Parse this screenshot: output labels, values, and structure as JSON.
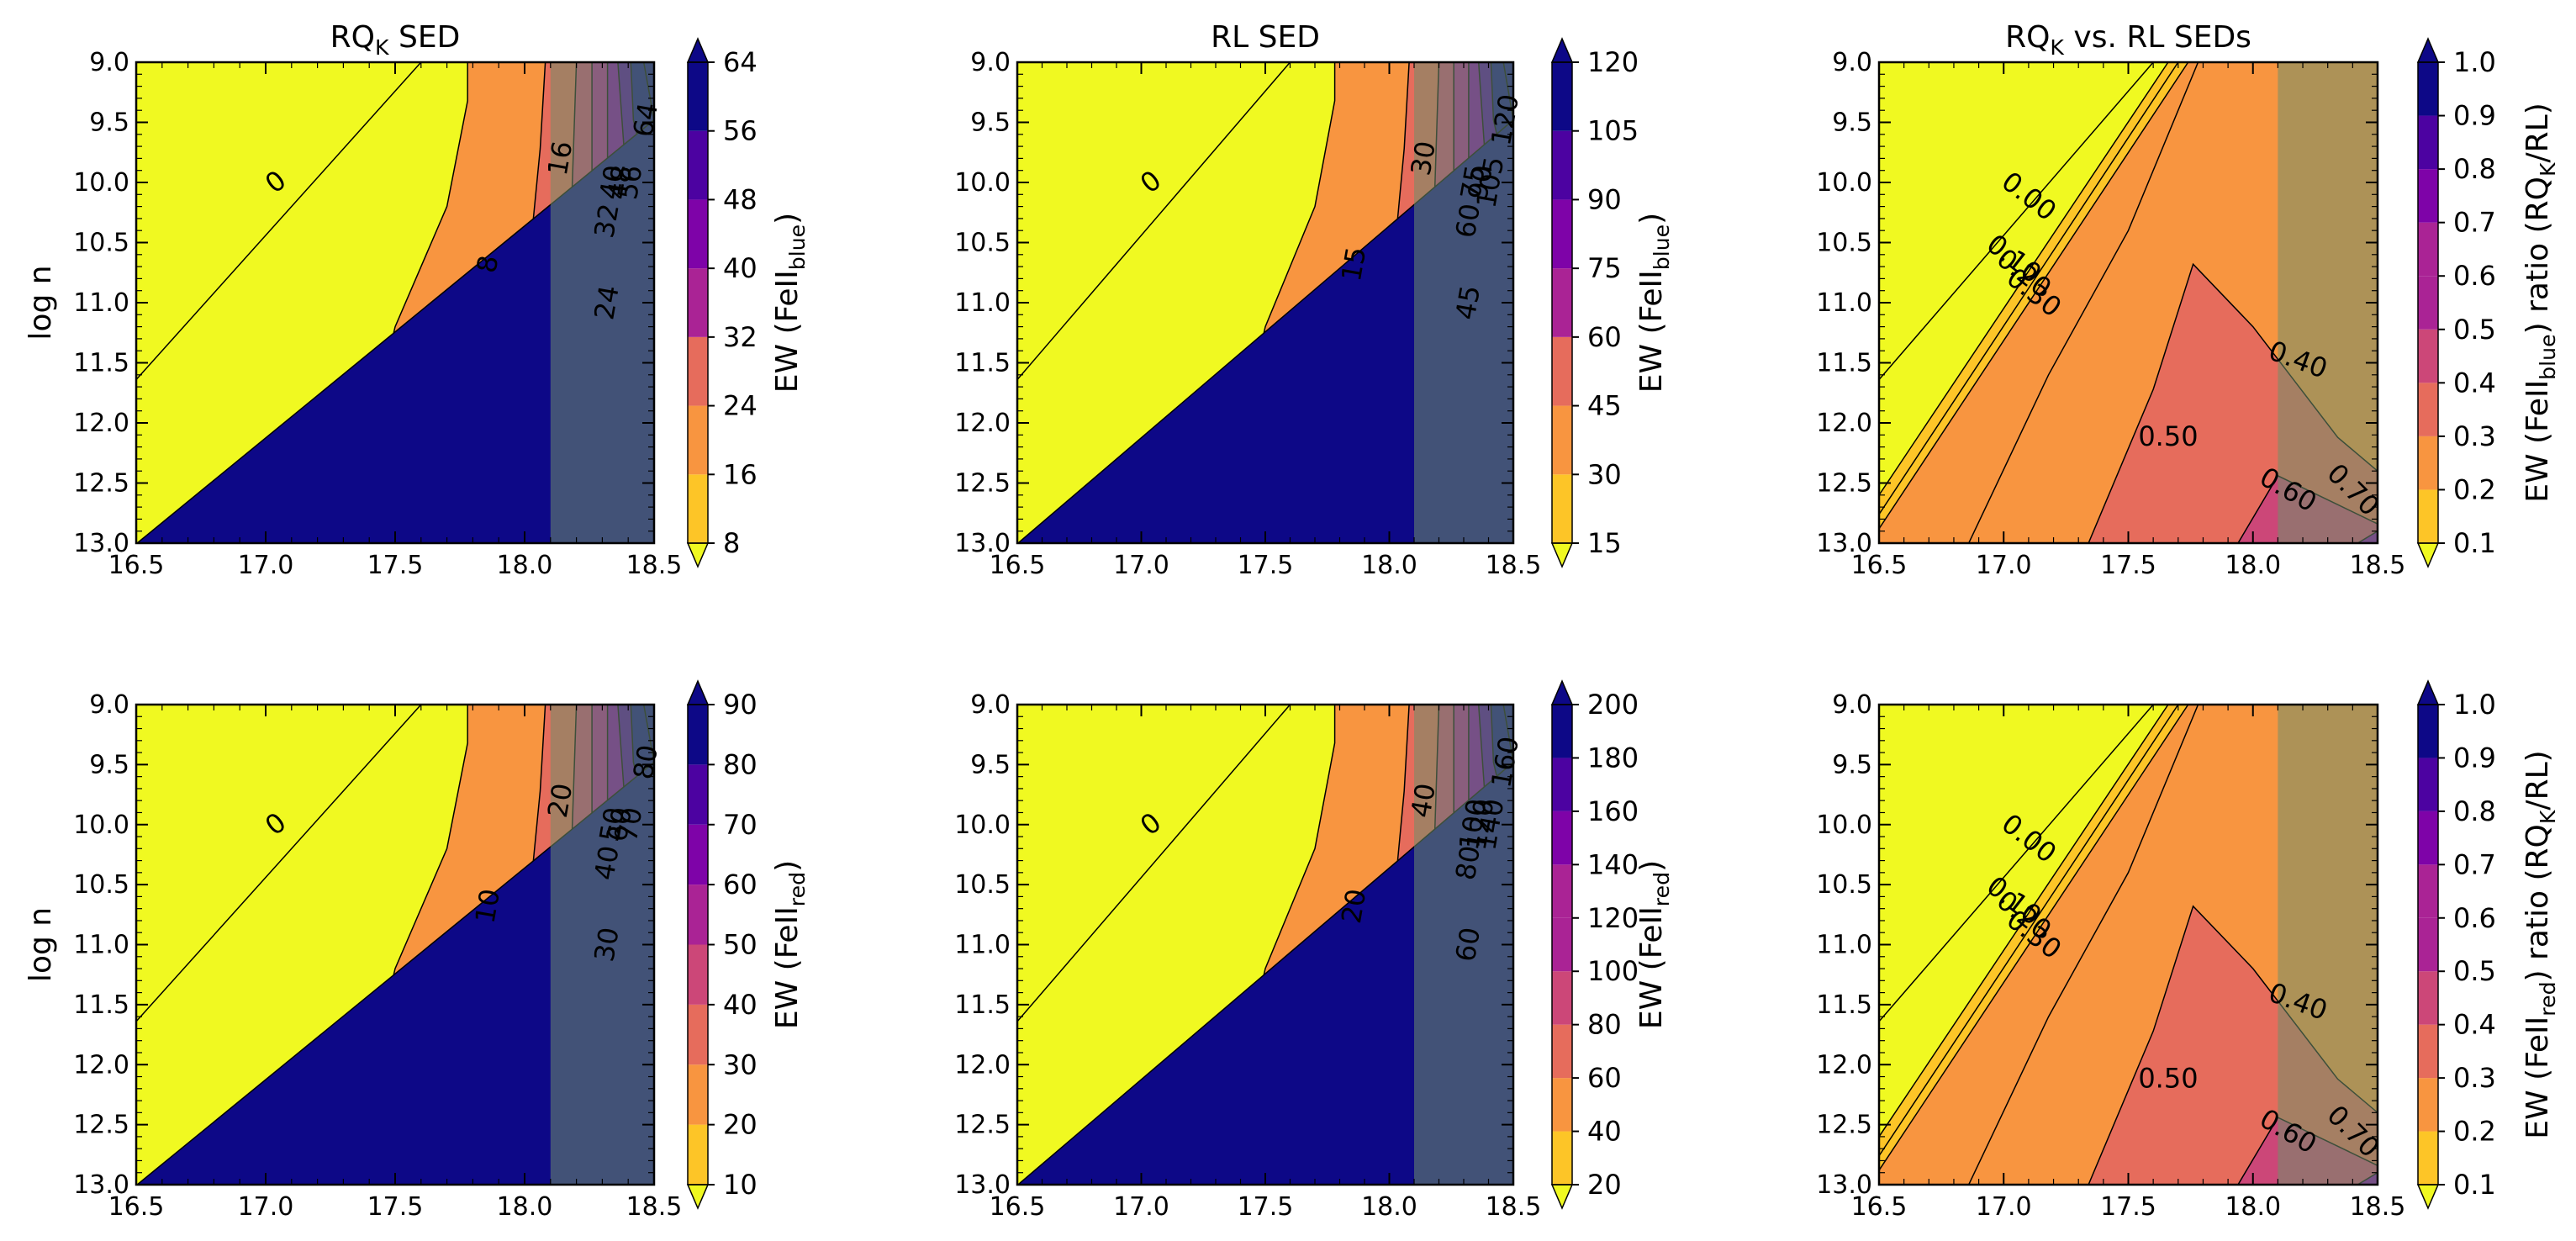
{
  "figure": {
    "y_axis_label": "log n",
    "x_ticks": [
      "16.5",
      "17.0",
      "17.5",
      "18.0",
      "18.5"
    ],
    "y_ticks": [
      "9.0",
      "9.5",
      "10.0",
      "10.5",
      "11.0",
      "11.5",
      "12.0",
      "12.5",
      "13.0"
    ]
  },
  "palette": [
    "#f0f921",
    "#fdc527",
    "#f89540",
    "#e66c5c",
    "#cc4778",
    "#aa2395",
    "#7e03a8",
    "#4c02a1",
    "#0d0887"
  ],
  "shade_color": "#6f8f6a",
  "chart_data": [
    {
      "type": "contourf",
      "panel": "top-left",
      "title_main": "RQ",
      "title_sub": "K",
      "title_rest": " SED",
      "show_ylabel": true,
      "xlim": [
        16.5,
        18.5
      ],
      "ylim": [
        9.0,
        13.0
      ],
      "contour_levels": [
        "0",
        "8",
        "16",
        "24",
        "32",
        "40",
        "48",
        "56",
        "64"
      ],
      "colorbar": {
        "label_main": "EW (FeII",
        "label_sub": "blue",
        "label_tail": ")",
        "ticks": [
          "8",
          "16",
          "24",
          "32",
          "40",
          "48",
          "56",
          "64"
        ]
      },
      "shaded_region": {
        "x_from": 18.1,
        "x_to": 18.5
      }
    },
    {
      "type": "contourf",
      "panel": "top-middle",
      "title_main": "RL SED",
      "title_sub": "",
      "title_rest": "",
      "show_ylabel": false,
      "xlim": [
        16.5,
        18.5
      ],
      "ylim": [
        9.0,
        13.0
      ],
      "contour_levels": [
        "0",
        "15",
        "30",
        "45",
        "60",
        "75",
        "90",
        "105",
        "120"
      ],
      "colorbar": {
        "label_main": "EW (FeII",
        "label_sub": "blue",
        "label_tail": ")",
        "ticks": [
          "15",
          "30",
          "45",
          "60",
          "75",
          "90",
          "105",
          "120"
        ]
      },
      "shaded_region": {
        "x_from": 18.1,
        "x_to": 18.5
      }
    },
    {
      "type": "contourf",
      "panel": "top-right",
      "title_main": "RQ",
      "title_sub": "K",
      "title_rest": " vs. RL SEDs",
      "show_ylabel": false,
      "xlim": [
        16.5,
        18.5
      ],
      "ylim": [
        9.0,
        13.0
      ],
      "contour_levels": [
        "0.00",
        "0.10",
        "0.20",
        "0.30",
        "0.40",
        "0.50",
        "0.60",
        "0.70"
      ],
      "colorbar": {
        "label_main": "EW (FeII",
        "label_sub": "blue",
        "label_tail": ") ratio (RQ",
        "label_sub2": "K",
        "label_end": "/RL)",
        "ticks": [
          "0.1",
          "0.2",
          "0.3",
          "0.4",
          "0.5",
          "0.6",
          "0.7",
          "0.8",
          "0.9",
          "1.0"
        ]
      },
      "shaded_region": {
        "x_from": 18.1,
        "x_to": 18.5
      }
    },
    {
      "type": "contourf",
      "panel": "bottom-left",
      "title_main": "",
      "title_sub": "",
      "title_rest": "",
      "show_ylabel": true,
      "xlim": [
        16.5,
        18.5
      ],
      "ylim": [
        9.0,
        13.0
      ],
      "contour_levels": [
        "0",
        "10",
        "20",
        "30",
        "40",
        "50",
        "60",
        "70",
        "80",
        "90"
      ],
      "colorbar": {
        "label_main": "EW (FeII",
        "label_sub": "red",
        "label_tail": ")",
        "ticks": [
          "10",
          "20",
          "30",
          "40",
          "50",
          "60",
          "70",
          "80",
          "90"
        ]
      },
      "shaded_region": {
        "x_from": 18.1,
        "x_to": 18.5
      }
    },
    {
      "type": "contourf",
      "panel": "bottom-middle",
      "title_main": "",
      "title_sub": "",
      "title_rest": "",
      "show_ylabel": false,
      "xlim": [
        16.5,
        18.5
      ],
      "ylim": [
        9.0,
        13.0
      ],
      "contour_levels": [
        "0",
        "20",
        "40",
        "60",
        "80",
        "100",
        "120",
        "140",
        "160",
        "180",
        "200"
      ],
      "colorbar": {
        "label_main": "EW (FeII",
        "label_sub": "red",
        "label_tail": ")",
        "ticks": [
          "20",
          "40",
          "60",
          "80",
          "100",
          "120",
          "140",
          "160",
          "180",
          "200"
        ]
      },
      "shaded_region": {
        "x_from": 18.1,
        "x_to": 18.5
      }
    },
    {
      "type": "contourf",
      "panel": "bottom-right",
      "title_main": "",
      "title_sub": "",
      "title_rest": "",
      "show_ylabel": false,
      "xlim": [
        16.5,
        18.5
      ],
      "ylim": [
        9.0,
        13.0
      ],
      "contour_levels": [
        "0.00",
        "0.10",
        "0.20",
        "0.30",
        "0.40",
        "0.50",
        "0.60",
        "0.70"
      ],
      "colorbar": {
        "label_main": "EW (FeII",
        "label_sub": "red",
        "label_tail": ") ratio (RQ",
        "label_sub2": "K",
        "label_end": "/RL)",
        "ticks": [
          "0.1",
          "0.2",
          "0.3",
          "0.4",
          "0.5",
          "0.6",
          "0.7",
          "0.8",
          "0.9",
          "1.0"
        ]
      },
      "shaded_region": {
        "x_from": 18.1,
        "x_to": 18.5
      }
    }
  ]
}
